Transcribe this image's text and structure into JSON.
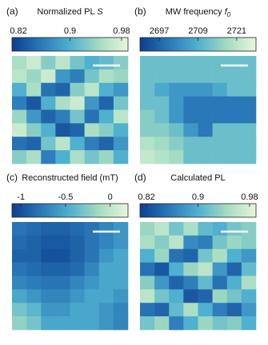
{
  "chart_data": [
    {
      "type": "heatmap",
      "label": "(a)",
      "title": "Normalized PL",
      "title_symbol": "S",
      "clim": [
        0.81,
        0.99
      ],
      "cticks": [
        0.82,
        0.9,
        0.98
      ],
      "colormap": [
        "#0b3f8f",
        "#2a78b8",
        "#4fb0cf",
        "#a3dcc2",
        "#e8f7da"
      ],
      "z": [
        [
          0.95,
          0.97,
          0.93,
          0.96,
          0.92,
          0.9,
          0.91,
          0.93
        ],
        [
          0.96,
          0.94,
          0.97,
          0.88,
          0.86,
          0.92,
          0.95,
          0.94
        ],
        [
          0.9,
          0.95,
          0.85,
          0.84,
          0.93,
          0.96,
          0.9,
          0.88
        ],
        [
          0.86,
          0.83,
          0.9,
          0.95,
          0.97,
          0.88,
          0.84,
          0.92
        ],
        [
          0.94,
          0.88,
          0.84,
          0.86,
          0.92,
          0.85,
          0.9,
          0.96
        ],
        [
          0.97,
          0.93,
          0.9,
          0.83,
          0.84,
          0.95,
          0.93,
          0.9
        ],
        [
          0.85,
          0.84,
          0.92,
          0.96,
          0.9,
          0.86,
          0.84,
          0.88
        ],
        [
          0.93,
          0.95,
          0.86,
          0.9,
          0.95,
          0.92,
          0.94,
          0.9
        ]
      ]
    },
    {
      "type": "heatmap",
      "label": "(b)",
      "title": "MW frequency",
      "title_symbol": "f",
      "title_subscript": "0",
      "clim": [
        2691,
        2727
      ],
      "cticks": [
        2697,
        2709,
        2721
      ],
      "colormap": [
        "#0b3f8f",
        "#2a78b8",
        "#4fb0cf",
        "#a3dcc2",
        "#e8f7da"
      ],
      "z": [
        [
          2712,
          2712,
          2712,
          2712,
          2712,
          2712,
          2712,
          2712
        ],
        [
          2712,
          2712,
          2712,
          2712,
          2712,
          2712,
          2712,
          2712
        ],
        [
          2712,
          2708,
          2705,
          2705,
          2705,
          2708,
          2712,
          2712
        ],
        [
          2712,
          2712,
          2705,
          2700,
          2700,
          2700,
          2700,
          2700
        ],
        [
          2715,
          2712,
          2705,
          2700,
          2700,
          2700,
          2700,
          2700
        ],
        [
          2715,
          2715,
          2712,
          2705,
          2700,
          2712,
          2712,
          2712
        ],
        [
          2720,
          2718,
          2715,
          2712,
          2712,
          2712,
          2712,
          2712
        ],
        [
          2722,
          2720,
          2718,
          2712,
          2712,
          2712,
          2712,
          2712
        ]
      ]
    },
    {
      "type": "heatmap",
      "label": "(c)",
      "title": "Reconstructed field (mT)",
      "clim": [
        -1.1,
        0.2
      ],
      "cticks": [
        -1,
        -0.5,
        0
      ],
      "colormap": [
        "#0b3f8f",
        "#2a78b8",
        "#4fb0cf",
        "#a3dcc2",
        "#e8f7da"
      ],
      "z": [
        [
          -0.8,
          -0.85,
          -0.9,
          -0.9,
          -0.85,
          -0.8,
          -0.7,
          -0.6
        ],
        [
          -0.85,
          -0.9,
          -0.95,
          -0.95,
          -0.9,
          -0.8,
          -0.7,
          -0.6
        ],
        [
          -0.9,
          -0.9,
          -1.0,
          -1.0,
          -0.9,
          -0.8,
          -0.6,
          -0.5
        ],
        [
          -0.8,
          -0.85,
          -0.9,
          -0.9,
          -0.85,
          -0.7,
          -0.5,
          -0.5
        ],
        [
          -0.7,
          -0.75,
          -0.8,
          -0.8,
          -0.7,
          -0.6,
          -0.5,
          -0.5
        ],
        [
          -0.5,
          -0.6,
          -0.7,
          -0.7,
          -0.6,
          -0.5,
          -0.5,
          -0.6
        ],
        [
          -0.3,
          -0.4,
          -0.6,
          -0.6,
          -0.5,
          -0.5,
          -0.6,
          -0.7
        ],
        [
          -0.2,
          -0.3,
          -0.5,
          -0.5,
          -0.5,
          -0.5,
          -0.6,
          -0.7
        ]
      ]
    },
    {
      "type": "heatmap",
      "label": "(d)",
      "title": "Calculated PL",
      "clim": [
        0.81,
        0.99
      ],
      "cticks": [
        0.82,
        0.9,
        0.98
      ],
      "colormap": [
        "#0b3f8f",
        "#2a78b8",
        "#4fb0cf",
        "#a3dcc2",
        "#e8f7da"
      ],
      "z": [
        [
          0.94,
          0.96,
          0.92,
          0.95,
          0.91,
          0.9,
          0.92,
          0.93
        ],
        [
          0.95,
          0.93,
          0.96,
          0.87,
          0.86,
          0.92,
          0.94,
          0.93
        ],
        [
          0.9,
          0.94,
          0.85,
          0.84,
          0.92,
          0.95,
          0.9,
          0.88
        ],
        [
          0.85,
          0.83,
          0.9,
          0.94,
          0.96,
          0.88,
          0.84,
          0.91
        ],
        [
          0.93,
          0.88,
          0.84,
          0.86,
          0.91,
          0.85,
          0.9,
          0.95
        ],
        [
          0.96,
          0.92,
          0.9,
          0.83,
          0.84,
          0.94,
          0.92,
          0.9
        ],
        [
          0.85,
          0.84,
          0.91,
          0.95,
          0.9,
          0.86,
          0.84,
          0.88
        ],
        [
          0.92,
          0.94,
          0.86,
          0.9,
          0.94,
          0.92,
          0.93,
          0.9
        ]
      ]
    }
  ]
}
